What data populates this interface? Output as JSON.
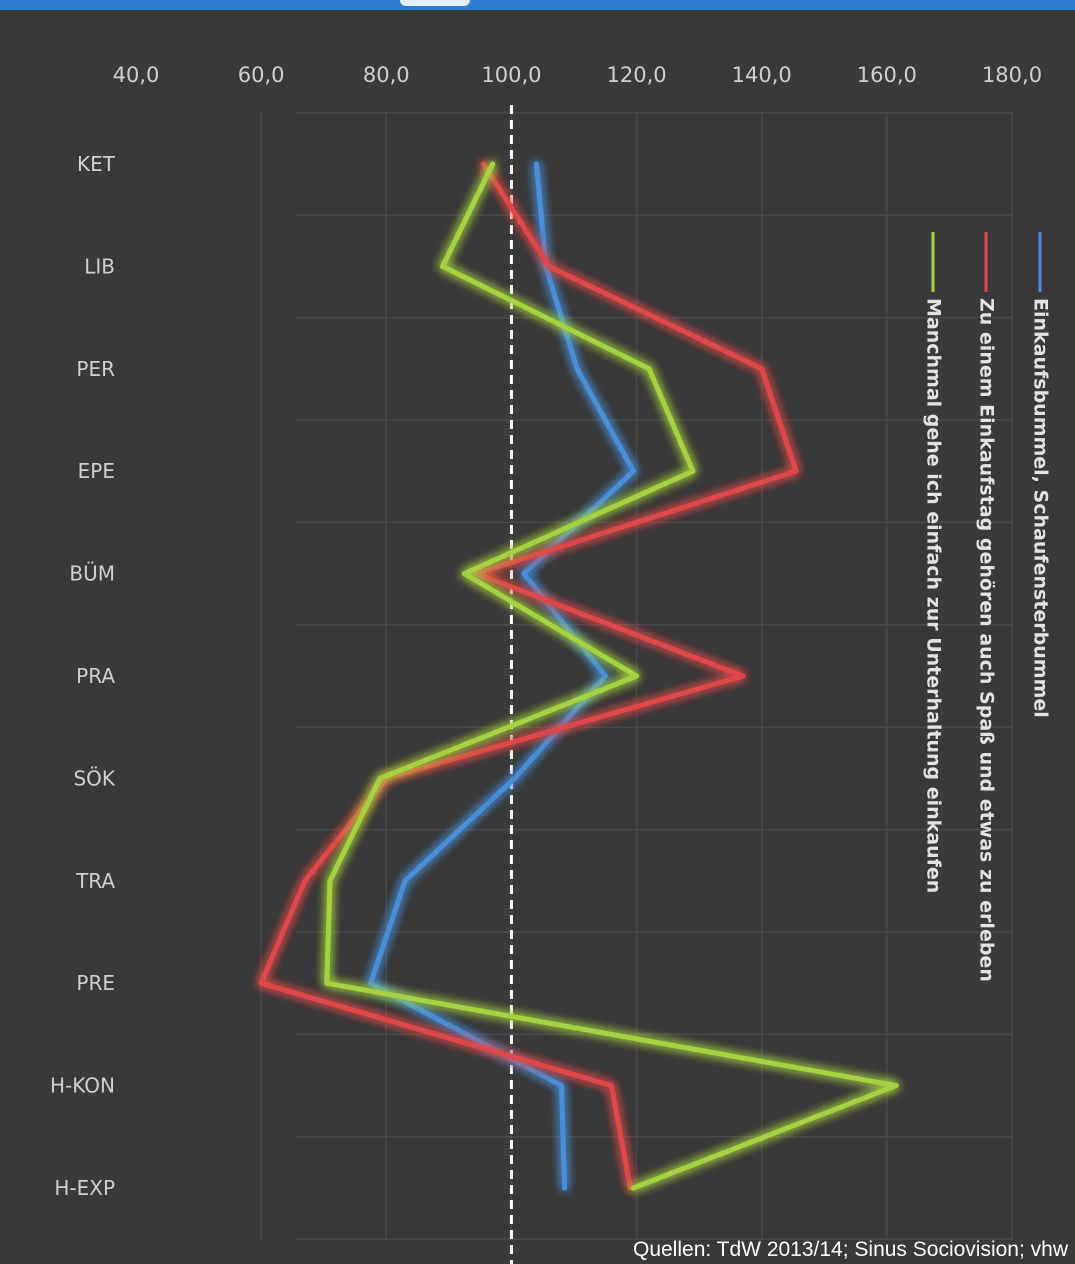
{
  "chart_data": {
    "type": "line",
    "orientation": "horizontal",
    "categories": [
      "KET",
      "LIB",
      "PER",
      "EPE",
      "BÜM",
      "PRA",
      "SÖK",
      "TRA",
      "PRE",
      "H-KON",
      "H-EXP"
    ],
    "x_ticks": [
      "40,0",
      "60,0",
      "80,0",
      "100,0",
      "120,0",
      "140,0",
      "160,0",
      "180,0"
    ],
    "xlim": [
      40,
      180
    ],
    "reference_line": 100,
    "series": [
      {
        "name": "Einkaufsbummel, Schaufensterbummel",
        "color": "#4a8fd9",
        "values": [
          104,
          105.5,
          110.5,
          119.5,
          102,
          115,
          100.5,
          83,
          77.5,
          108,
          108.5
        ]
      },
      {
        "name": "Zu einem Einkaufstag gehören auch Spaß und etwas zu erleben",
        "color": "#e04848",
        "values": [
          95.5,
          106,
          140,
          145.5,
          94.5,
          137,
          80,
          67,
          60,
          116,
          119
        ]
      },
      {
        "name": "Manchmal gehe ich einfach zur Unterhaltung einkaufen",
        "color": "#a4d23f",
        "values": [
          97,
          89,
          122,
          129,
          92.5,
          120,
          79,
          71,
          70.5,
          161.5,
          119.5
        ]
      }
    ],
    "grid": true,
    "legend_position": "right, rotated vertical",
    "source": "Quellen: TdW 2013/14; Sinus Sociovision; vhw"
  }
}
